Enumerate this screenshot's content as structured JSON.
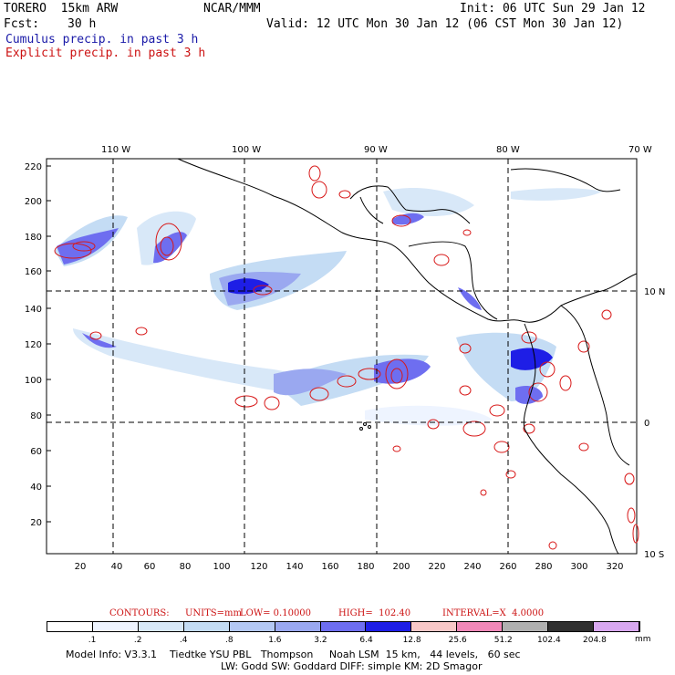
{
  "header": {
    "model": "TORERO  15km ARW",
    "org": "NCAR/MMM",
    "init": "Init: 06 UTC Sun 29 Jan 12",
    "fcst_label": "Fcst:",
    "fcst_value": "30 h",
    "valid": "Valid: 12 UTC Mon 30 Jan 12 (06 CST Mon 30 Jan 12)",
    "field1": "Cumulus precip. in past 3 h",
    "field2": "Explicit precip. in past 3 h"
  },
  "map": {
    "top_lon_labels": [
      "110 W",
      "100 W",
      "90 W",
      "80 W",
      "70 W"
    ],
    "right_lat_labels": [
      "10 N",
      "0",
      "10 S"
    ],
    "left_y_ticks": [
      "220",
      "200",
      "180",
      "160",
      "140",
      "120",
      "100",
      "80",
      "60",
      "40",
      "20"
    ],
    "bottom_x_ticks": [
      "20",
      "40",
      "60",
      "80",
      "100",
      "120",
      "140",
      "160",
      "180",
      "200",
      "220",
      "240",
      "260",
      "280",
      "300",
      "320"
    ]
  },
  "contours": {
    "label": "CONTOURS:",
    "units": "UNITS=mm",
    "low": "LOW= 0.10000",
    "high": "HIGH=  102.40",
    "interval": "INTERVAL=X  4.0000"
  },
  "colorbar": {
    "labels": [
      ".1",
      ".2",
      ".4",
      ".8",
      "1.6",
      "3.2",
      "6.4",
      "12.8",
      "25.6",
      "51.2",
      "102.4",
      "204.8"
    ],
    "unit": "mm",
    "colors": [
      "#ffffff",
      "#eef4ff",
      "#d8e8f8",
      "#c4dcf4",
      "#b4c8f4",
      "#9aa8f0",
      "#6e6ef0",
      "#1e1ee6",
      "#f8c8c8",
      "#f088b8",
      "#b0b0b0",
      "#303030",
      "#d8a8f0"
    ]
  },
  "footer": {
    "line1": "Model Info: V3.3.1    Tiedtke YSU PBL   Thompson     Noah LSM  15 km,   44 levels,   60 sec",
    "line2": "LW: Godd SW: Goddard DIFF: simple KM: 2D Smagor"
  }
}
